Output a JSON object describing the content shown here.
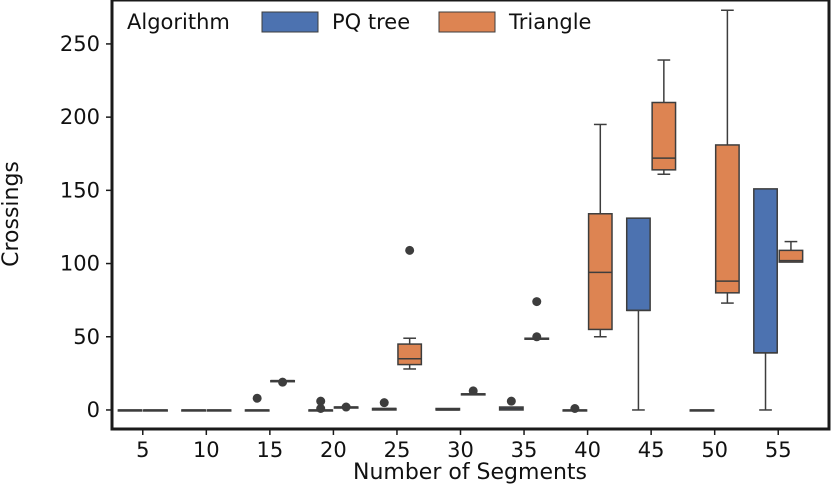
{
  "chart_data": {
    "type": "box",
    "title": "",
    "xlabel": "Number of Segments",
    "ylabel": "Crossings",
    "ylim": [
      -13,
      280
    ],
    "yticks": [
      0,
      50,
      100,
      150,
      200,
      250
    ],
    "categories": [
      "5",
      "10",
      "15",
      "20",
      "25",
      "30",
      "35",
      "40",
      "45",
      "50",
      "55"
    ],
    "legend": {
      "title": "Algorithm",
      "placement": "top-left",
      "orientation": "horizontal"
    },
    "grid": false,
    "series": [
      {
        "name": "PQ tree",
        "color": "#4c72b0",
        "boxes": [
          {
            "category": "5",
            "min": 0,
            "q1": 0,
            "median": 0,
            "q3": 0,
            "max": 0,
            "outliers": []
          },
          {
            "category": "10",
            "min": 0,
            "q1": 0,
            "median": 0,
            "q3": 0,
            "max": 0,
            "outliers": []
          },
          {
            "category": "15",
            "min": 0,
            "q1": 0,
            "median": 0,
            "q3": 0,
            "max": 0,
            "outliers": [
              8
            ]
          },
          {
            "category": "20",
            "min": 0,
            "q1": 0,
            "median": 0,
            "q3": 0,
            "max": 0,
            "outliers": [
              1,
              6
            ]
          },
          {
            "category": "25",
            "min": 0,
            "q1": 0,
            "median": 1,
            "q3": 1,
            "max": 1,
            "outliers": [
              5
            ]
          },
          {
            "category": "30",
            "min": 0,
            "q1": 0,
            "median": 0,
            "q3": 1,
            "max": 1,
            "outliers": []
          },
          {
            "category": "35",
            "min": 0,
            "q1": 0,
            "median": 1,
            "q3": 2,
            "max": 2,
            "outliers": [
              6
            ]
          },
          {
            "category": "40",
            "min": 0,
            "q1": 0,
            "median": 0,
            "q3": 0,
            "max": 0,
            "outliers": [
              1
            ]
          },
          {
            "category": "45",
            "min": 0,
            "q1": 68,
            "median": 68,
            "q3": 131,
            "max": 131,
            "outliers": []
          },
          {
            "category": "50",
            "min": 0,
            "q1": 0,
            "median": 0,
            "q3": 0,
            "max": 0,
            "outliers": []
          },
          {
            "category": "55",
            "min": 0,
            "q1": 39,
            "median": 39,
            "q3": 151,
            "max": 151,
            "outliers": []
          }
        ]
      },
      {
        "name": "Triangle",
        "color": "#dd8452",
        "boxes": [
          {
            "category": "5",
            "min": 0,
            "q1": 0,
            "median": 0,
            "q3": 0,
            "max": 0,
            "outliers": []
          },
          {
            "category": "10",
            "min": 0,
            "q1": 0,
            "median": 0,
            "q3": 0,
            "max": 0,
            "outliers": []
          },
          {
            "category": "15",
            "min": 20,
            "q1": 20,
            "median": 20,
            "q3": 20,
            "max": 20,
            "outliers": [
              19
            ]
          },
          {
            "category": "20",
            "min": 2,
            "q1": 2,
            "median": 2,
            "q3": 2,
            "max": 2,
            "outliers": [
              2
            ]
          },
          {
            "category": "25",
            "min": 28,
            "q1": 31,
            "median": 35,
            "q3": 45,
            "max": 49,
            "outliers": [
              109
            ]
          },
          {
            "category": "30",
            "min": 11,
            "q1": 11,
            "median": 11,
            "q3": 11,
            "max": 11,
            "outliers": [
              13
            ]
          },
          {
            "category": "35",
            "min": 49,
            "q1": 49,
            "median": 49,
            "q3": 49,
            "max": 49,
            "outliers": [
              50,
              74
            ]
          },
          {
            "category": "40",
            "min": 50,
            "q1": 55,
            "median": 94,
            "q3": 134,
            "max": 195,
            "outliers": []
          },
          {
            "category": "45",
            "min": 161,
            "q1": 164,
            "median": 172,
            "q3": 210,
            "max": 239,
            "outliers": []
          },
          {
            "category": "50",
            "min": 73,
            "q1": 80,
            "median": 88,
            "q3": 181,
            "max": 273,
            "outliers": []
          },
          {
            "category": "55",
            "min": 101,
            "q1": 101,
            "median": 102,
            "q3": 109,
            "max": 115,
            "outliers": []
          }
        ]
      }
    ]
  }
}
